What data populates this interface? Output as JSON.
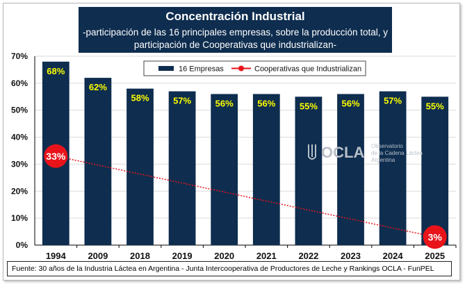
{
  "header": {
    "title": "Concentración Industrial",
    "subtitle_line1": "-participación de las 16 principales empresas, sobre la producción total, y",
    "subtitle_line2": "participación de Cooperativas que industrializan-"
  },
  "source": "Fuente: 30 años de la Industria Láctea en Argentina - Junta Intercooperativa de Productores de Leche y Rankings OCLA - FunPEL",
  "watermark": {
    "brand": "OCLA",
    "line1": "Observatorio",
    "line2": "de la Cadena Láctea",
    "line3": "Argentina"
  },
  "colors": {
    "bar": "#0e2d4f",
    "bar_label": "#ffff00",
    "coop": "#e8141a",
    "frame": "#0e2d4f"
  },
  "chart_data": {
    "type": "bar",
    "categories": [
      "1994",
      "2009",
      "2018",
      "2019",
      "2020",
      "2021",
      "2022",
      "2023",
      "2024",
      "2025"
    ],
    "series": [
      {
        "name": "16 Empresas",
        "type": "bar",
        "values": [
          68,
          62,
          58,
          57,
          56,
          56,
          55,
          56,
          57,
          55
        ],
        "labels": [
          "68%",
          "62%",
          "58%",
          "57%",
          "56%",
          "56%",
          "55%",
          "56%",
          "57%",
          "55%"
        ]
      },
      {
        "name": "Cooperativas que Industrializan",
        "type": "line",
        "points": [
          {
            "x": "1994",
            "y": 33,
            "label": "33%"
          },
          {
            "x": "2025",
            "y": 3,
            "label": "3%"
          }
        ]
      }
    ],
    "yticks": [
      "0%",
      "10%",
      "20%",
      "30%",
      "40%",
      "50%",
      "60%",
      "70%"
    ],
    "ylim": [
      0,
      70
    ],
    "legend_position": "top"
  }
}
